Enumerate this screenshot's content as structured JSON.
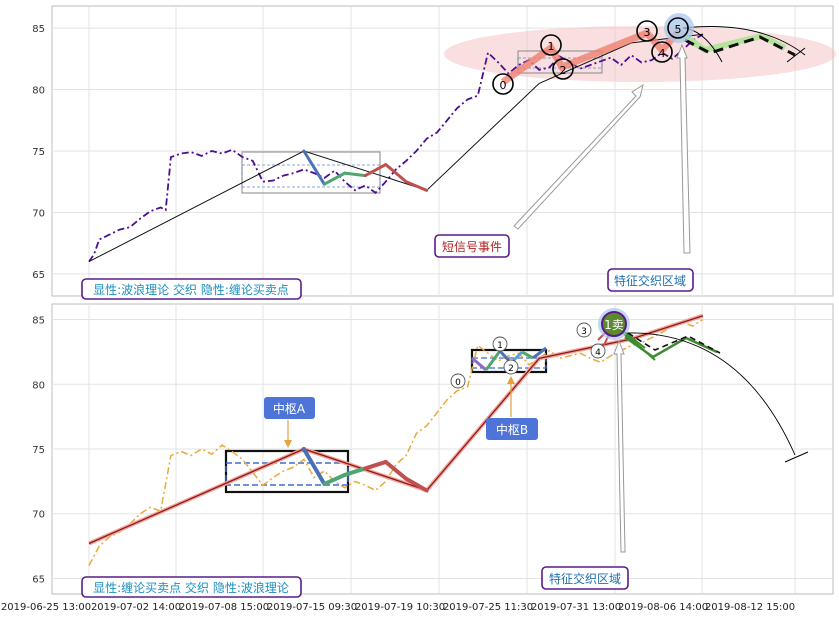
{
  "chart_data": [
    {
      "type": "line",
      "ylim": [
        63.2,
        86.8
      ],
      "yticks": [
        65,
        70,
        75,
        80,
        85
      ],
      "grid": true,
      "legend_box": "显性:波浪理论 交织 隐性:缠论买卖点",
      "annotations": {
        "short_signal": "短信号事件",
        "feature_zone": "特征交织区域"
      },
      "wave_labels": [
        "0",
        "1",
        "2",
        "3",
        "4",
        "5"
      ],
      "series": [
        {
          "style": "purple-dashdot",
          "x": [
            1,
            1.5,
            2,
            3,
            4,
            5,
            6,
            7,
            8,
            8.5,
            9,
            10,
            11,
            12,
            13,
            14,
            15,
            16,
            17,
            18,
            19,
            20,
            21,
            22,
            23,
            24,
            25,
            26,
            27,
            28,
            29,
            30,
            31,
            32,
            33,
            34,
            35,
            36,
            37,
            38,
            39,
            40,
            41,
            42,
            43,
            44,
            45,
            46,
            47,
            48,
            49,
            50,
            51,
            52,
            53,
            54,
            55,
            56,
            57,
            58,
            59,
            60,
            61
          ],
          "y": [
            66.0,
            66.6,
            67.8,
            68.2,
            68.6,
            68.8,
            69.5,
            70.1,
            70.4,
            70.2,
            74.5,
            74.8,
            74.9,
            74.6,
            75.0,
            74.8,
            75.1,
            74.5,
            74.2,
            72.5,
            72.6,
            73.0,
            73.2,
            73.5,
            73.2,
            72.8,
            73.4,
            72.5,
            71.8,
            72.2,
            71.6,
            72.5,
            73.5,
            74.2,
            75.0,
            76.0,
            76.5,
            77.5,
            78.5,
            79.2,
            79.5,
            83.0,
            82.2,
            81.3,
            82.0,
            82.4,
            81.6,
            81.8,
            82.7,
            82.2,
            81.7,
            82.0,
            82.3,
            82.6,
            82.0,
            82.8,
            82.2,
            82.4,
            83.0,
            82.5,
            83.2,
            84.0,
            84.5
          ]
        },
        {
          "style": "black-thin-trend",
          "x": [
            1,
            22,
            34,
            45,
            54,
            61
          ],
          "y": [
            66.0,
            75.0,
            71.8,
            80.5,
            83.8,
            84.5
          ]
        },
        {
          "style": "wave-segments",
          "x": [
            22,
            24,
            26,
            28,
            30,
            32,
            34
          ],
          "y": [
            75.0,
            72.3,
            73.2,
            73.0,
            73.9,
            72.5,
            71.8
          ]
        },
        {
          "style": "forecast-dashed",
          "x": [
            62,
            64,
            66,
            68,
            70
          ],
          "y": [
            84.3,
            83.0,
            83.8,
            84.2,
            83.0
          ]
        }
      ]
    },
    {
      "type": "line",
      "ylim": [
        63.8,
        86.2
      ],
      "yticks": [
        65,
        70,
        75,
        80,
        85
      ],
      "grid": true,
      "legend_box": "显性:缠论买卖点 交织 隐性:波浪理论",
      "annotations": {
        "pivot_a": "中枢A",
        "pivot_b": "中枢B",
        "feature_zone": "特征交织区域",
        "sell_point": "1卖"
      },
      "wave_labels": [
        "0",
        "1",
        "2",
        "3",
        "4"
      ],
      "x_ticks": [
        "2019-06-25 13:00",
        "2019-07-02 14:00",
        "2019-07-08 15:00",
        "2019-07-15 09:30",
        "2019-07-19 10:30",
        "2019-07-25 11:30",
        "2019-07-31 13:00",
        "2019-08-06 14:00",
        "2019-08-12 15:00"
      ],
      "series": [
        {
          "style": "orange-dashdot",
          "x": [
            1,
            2,
            3,
            4,
            5,
            6,
            7,
            8,
            9,
            10,
            11,
            12,
            13,
            14,
            15,
            16,
            17,
            18,
            19,
            20,
            21,
            22,
            23,
            24,
            25,
            26,
            27,
            28,
            29,
            30,
            31,
            32,
            33,
            34,
            35,
            36,
            37,
            38,
            39,
            40,
            41,
            42,
            43,
            44,
            45,
            46,
            47,
            48,
            49,
            50,
            51,
            52,
            53,
            54,
            55,
            56,
            57,
            58,
            59,
            60,
            61
          ],
          "y": [
            66.0,
            67.5,
            68.2,
            68.6,
            69.2,
            70.0,
            70.5,
            70.2,
            74.5,
            74.8,
            74.5,
            75.0,
            74.6,
            75.3,
            74.8,
            74.2,
            73.2,
            72.2,
            72.8,
            73.3,
            73.6,
            74.2,
            72.8,
            73.3,
            72.5,
            72.0,
            72.5,
            72.2,
            71.8,
            72.5,
            73.8,
            74.5,
            76.2,
            76.8,
            77.8,
            78.8,
            79.5,
            79.8,
            83.0,
            82.4,
            81.8,
            82.2,
            82.4,
            81.5,
            82.0,
            82.6,
            82.0,
            82.2,
            82.4,
            82.0,
            81.7,
            82.2,
            82.6,
            83.0,
            83.2,
            83.6,
            84.0,
            84.5,
            84.8,
            84.5,
            85.0
          ]
        },
        {
          "style": "red-bi",
          "x": [
            1,
            22,
            34,
            45,
            54,
            61
          ],
          "y": [
            67.7,
            75.0,
            71.8,
            82.0,
            83.5,
            85.3
          ]
        },
        {
          "style": "bi-segments",
          "x": [
            22,
            24,
            26,
            28,
            30,
            32,
            34
          ],
          "y": [
            75.0,
            72.3,
            73.0,
            73.5,
            74.0,
            72.7,
            71.8
          ]
        },
        {
          "style": "forecast-dashed",
          "x": [
            62,
            64,
            66,
            68
          ],
          "y": [
            84.5,
            83.2,
            84.2,
            83.0
          ]
        }
      ]
    }
  ]
}
